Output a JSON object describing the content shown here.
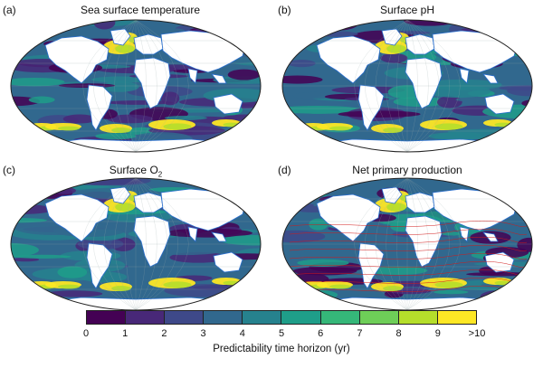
{
  "panels": [
    {
      "label": "(a)",
      "title": "Sea surface temperature"
    },
    {
      "label": "(b)",
      "title": "Surface pH"
    },
    {
      "label": "(c)",
      "title_main": "Surface O",
      "title_sub": "2"
    },
    {
      "label": "(d)",
      "title": "Net primary production"
    }
  ],
  "colorbar": {
    "label": "Predictability time horizon (yr)",
    "ticks": [
      "0",
      "1",
      "2",
      "3",
      "4",
      "5",
      "6",
      "7",
      "8",
      "9",
      ">10"
    ],
    "colors": [
      "#440154",
      "#482878",
      "#3e4989",
      "#31688e",
      "#26828e",
      "#1f9e89",
      "#35b779",
      "#6ece58",
      "#b5de2b",
      "#fde725"
    ]
  },
  "colors": {
    "land": "#ffffff",
    "coastline": "#2a6fcf",
    "ocean_base": "#31688e",
    "high": "#fde725",
    "contour": "#d01c1c"
  }
}
